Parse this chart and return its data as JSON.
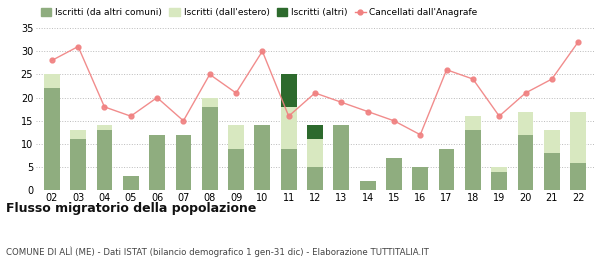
{
  "years": [
    "02",
    "03",
    "04",
    "05",
    "06",
    "07",
    "08",
    "09",
    "10",
    "11",
    "12",
    "13",
    "14",
    "15",
    "16",
    "17",
    "18",
    "19",
    "20",
    "21",
    "22"
  ],
  "iscritti_comuni": [
    22,
    11,
    13,
    3,
    12,
    12,
    18,
    9,
    14,
    9,
    5,
    14,
    2,
    7,
    5,
    9,
    13,
    4,
    12,
    8,
    6
  ],
  "iscritti_estero": [
    3,
    2,
    1,
    0,
    0,
    0,
    2,
    5,
    0,
    9,
    6,
    0,
    0,
    0,
    0,
    0,
    3,
    1,
    5,
    5,
    11
  ],
  "iscritti_altri": [
    0,
    0,
    0,
    0,
    0,
    0,
    0,
    0,
    0,
    7,
    3,
    0,
    0,
    0,
    0,
    0,
    0,
    0,
    0,
    0,
    0
  ],
  "cancellati": [
    28,
    31,
    18,
    16,
    20,
    15,
    25,
    21,
    30,
    16,
    21,
    19,
    17,
    15,
    12,
    26,
    24,
    16,
    21,
    24,
    32
  ],
  "color_comuni": "#8fad7f",
  "color_estero": "#d8e8c0",
  "color_altri": "#2d6a2d",
  "color_cancellati": "#f08080",
  "ylim": [
    0,
    35
  ],
  "yticks": [
    0,
    5,
    10,
    15,
    20,
    25,
    30,
    35
  ],
  "title": "Flusso migratorio della popolazione",
  "subtitle": "COMUNE DI ALÌ (ME) - Dati ISTAT (bilancio demografico 1 gen-31 dic) - Elaborazione TUTTITALIA.IT",
  "legend_labels": [
    "Iscritti (da altri comuni)",
    "Iscritti (dall'estero)",
    "Iscritti (altri)",
    "Cancellati dall'Anagrafe"
  ],
  "background_color": "#ffffff"
}
